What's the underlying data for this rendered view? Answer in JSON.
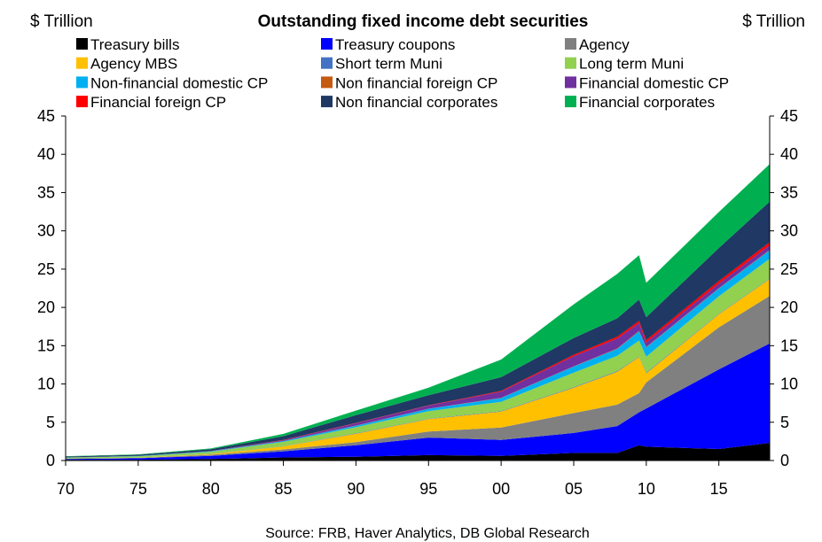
{
  "chart_data": {
    "type": "area",
    "title": "Outstanding fixed income debt securities",
    "ylabel_left": "$ Trillion",
    "ylabel_right": "$ Trillion",
    "source": "Source: FRB, Haver Analytics, DB Global  Research",
    "x_ticks": [
      {
        "x": 1970,
        "label": "70"
      },
      {
        "x": 1975,
        "label": "75"
      },
      {
        "x": 1980,
        "label": "80"
      },
      {
        "x": 1985,
        "label": "85"
      },
      {
        "x": 1990,
        "label": "90"
      },
      {
        "x": 1995,
        "label": "95"
      },
      {
        "x": 2000,
        "label": "00"
      },
      {
        "x": 2005,
        "label": "05"
      },
      {
        "x": 2010,
        "label": "10"
      },
      {
        "x": 2015,
        "label": "15"
      }
    ],
    "y_ticks": [
      0,
      5,
      10,
      15,
      20,
      25,
      30,
      35,
      40,
      45
    ],
    "xlim": [
      1970,
      2018.5
    ],
    "ylim": [
      0,
      45
    ],
    "stacked": true,
    "x": [
      1970,
      1975,
      1980,
      1985,
      1990,
      1995,
      2000,
      2005,
      2008,
      2009.5,
      2010,
      2015,
      2018.5
    ],
    "series": [
      {
        "name": "Treasury bills",
        "color": "#000000",
        "values": [
          0.1,
          0.1,
          0.2,
          0.4,
          0.5,
          0.7,
          0.6,
          1.0,
          1.0,
          2.0,
          1.8,
          1.5,
          2.3
        ]
      },
      {
        "name": "Treasury coupons",
        "color": "#0000ff",
        "values": [
          0.1,
          0.2,
          0.4,
          0.8,
          1.5,
          2.3,
          2.1,
          2.6,
          3.5,
          4.3,
          5.0,
          10.4,
          13.0
        ]
      },
      {
        "name": "Agency",
        "color": "#808080",
        "values": [
          0.05,
          0.05,
          0.15,
          0.25,
          0.4,
          0.8,
          1.6,
          2.6,
          2.8,
          2.5,
          3.4,
          5.5,
          6.2
        ]
      },
      {
        "name": "Agency MBS",
        "color": "#ffc000",
        "values": [
          0.0,
          0.03,
          0.1,
          0.4,
          1.1,
          1.6,
          2.1,
          3.3,
          4.3,
          4.7,
          1.2,
          1.7,
          2.2
        ]
      },
      {
        "name": "Short term Muni",
        "color": "#4472c4",
        "values": [
          0.0,
          0.0,
          0.02,
          0.04,
          0.05,
          0.05,
          0.06,
          0.07,
          0.08,
          0.07,
          0.07,
          0.06,
          0.06
        ]
      },
      {
        "name": "Long term Muni",
        "color": "#92d050",
        "values": [
          0.12,
          0.18,
          0.28,
          0.55,
          0.8,
          1.0,
          1.2,
          1.9,
          2.0,
          2.1,
          2.1,
          2.3,
          2.6
        ]
      },
      {
        "name": "Non-financial domestic CP",
        "color": "#00b0f0",
        "values": [
          0.02,
          0.03,
          0.06,
          0.1,
          0.2,
          0.3,
          0.5,
          0.8,
          0.9,
          1.2,
          1.2,
          1.0,
          1.1
        ]
      },
      {
        "name": "Non financial foreign CP",
        "color": "#c55a11",
        "values": [
          0.0,
          0.0,
          0.0,
          0.01,
          0.02,
          0.02,
          0.03,
          0.04,
          0.05,
          0.06,
          0.06,
          0.05,
          0.06
        ]
      },
      {
        "name": "Financial domestic CP",
        "color": "#7030a0",
        "values": [
          0.01,
          0.01,
          0.03,
          0.1,
          0.3,
          0.4,
          0.8,
          1.3,
          1.3,
          1.0,
          0.6,
          0.6,
          0.6
        ]
      },
      {
        "name": "Financial foreign CP",
        "color": "#ff0000",
        "values": [
          0.0,
          0.0,
          0.01,
          0.03,
          0.05,
          0.05,
          0.1,
          0.2,
          0.25,
          0.3,
          0.3,
          0.35,
          0.4
        ]
      },
      {
        "name": "Non financial corporates",
        "color": "#1f3864",
        "values": [
          0.12,
          0.15,
          0.22,
          0.5,
          1.0,
          1.3,
          1.8,
          2.2,
          2.4,
          2.8,
          3.0,
          4.3,
          5.3
        ]
      },
      {
        "name": "Financial corporates",
        "color": "#00b050",
        "values": [
          0.05,
          0.06,
          0.1,
          0.3,
          0.6,
          1.0,
          2.3,
          4.4,
          5.8,
          5.8,
          4.5,
          4.7,
          4.9
        ]
      }
    ]
  }
}
